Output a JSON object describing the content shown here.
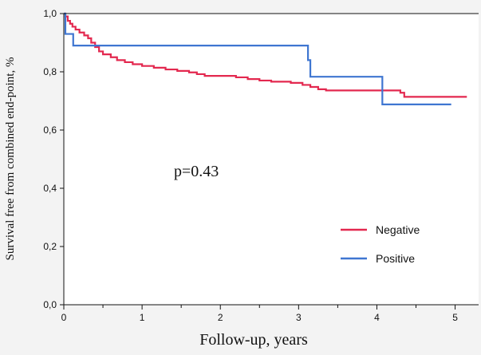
{
  "chart_data": {
    "type": "line",
    "title": "",
    "xlabel": "Follow-up, years",
    "ylabel": "Survival free from combined end-point, %",
    "xlim": [
      0,
      5.3
    ],
    "ylim": [
      0,
      1.0
    ],
    "x_ticks": [
      "0",
      "1",
      "2",
      "3",
      "4",
      "5"
    ],
    "y_ticks": [
      "0,0",
      "0,2",
      "0,4",
      "0,6",
      "0,8",
      "1,0"
    ],
    "annotation": "p=0.43",
    "legend_position": "bottom-right",
    "series": [
      {
        "name": "Negative",
        "color": "#e3284f",
        "step": true,
        "points": [
          [
            0,
            1.0
          ],
          [
            0.02,
            0.99
          ],
          [
            0.05,
            0.975
          ],
          [
            0.08,
            0.965
          ],
          [
            0.11,
            0.955
          ],
          [
            0.15,
            0.945
          ],
          [
            0.2,
            0.935
          ],
          [
            0.26,
            0.925
          ],
          [
            0.31,
            0.915
          ],
          [
            0.35,
            0.9
          ],
          [
            0.4,
            0.885
          ],
          [
            0.45,
            0.87
          ],
          [
            0.5,
            0.86
          ],
          [
            0.6,
            0.85
          ],
          [
            0.68,
            0.84
          ],
          [
            0.78,
            0.833
          ],
          [
            0.88,
            0.826
          ],
          [
            1.0,
            0.82
          ],
          [
            1.15,
            0.814
          ],
          [
            1.3,
            0.808
          ],
          [
            1.45,
            0.803
          ],
          [
            1.6,
            0.798
          ],
          [
            1.7,
            0.792
          ],
          [
            1.8,
            0.786
          ],
          [
            2.0,
            0.786
          ],
          [
            2.2,
            0.781
          ],
          [
            2.35,
            0.775
          ],
          [
            2.5,
            0.77
          ],
          [
            2.65,
            0.766
          ],
          [
            2.9,
            0.762
          ],
          [
            3.05,
            0.755
          ],
          [
            3.15,
            0.748
          ],
          [
            3.25,
            0.74
          ],
          [
            3.35,
            0.736
          ],
          [
            3.5,
            0.736
          ],
          [
            4.3,
            0.728
          ],
          [
            4.35,
            0.714
          ],
          [
            5.15,
            0.714
          ]
        ]
      },
      {
        "name": "Positive",
        "color": "#3f76d1",
        "step": true,
        "points": [
          [
            0,
            1.0
          ],
          [
            0.02,
            0.93
          ],
          [
            0.12,
            0.89
          ],
          [
            3.08,
            0.89
          ],
          [
            3.12,
            0.84
          ],
          [
            3.15,
            0.783
          ],
          [
            4.05,
            0.783
          ],
          [
            4.07,
            0.688
          ],
          [
            4.95,
            0.688
          ]
        ]
      }
    ]
  }
}
